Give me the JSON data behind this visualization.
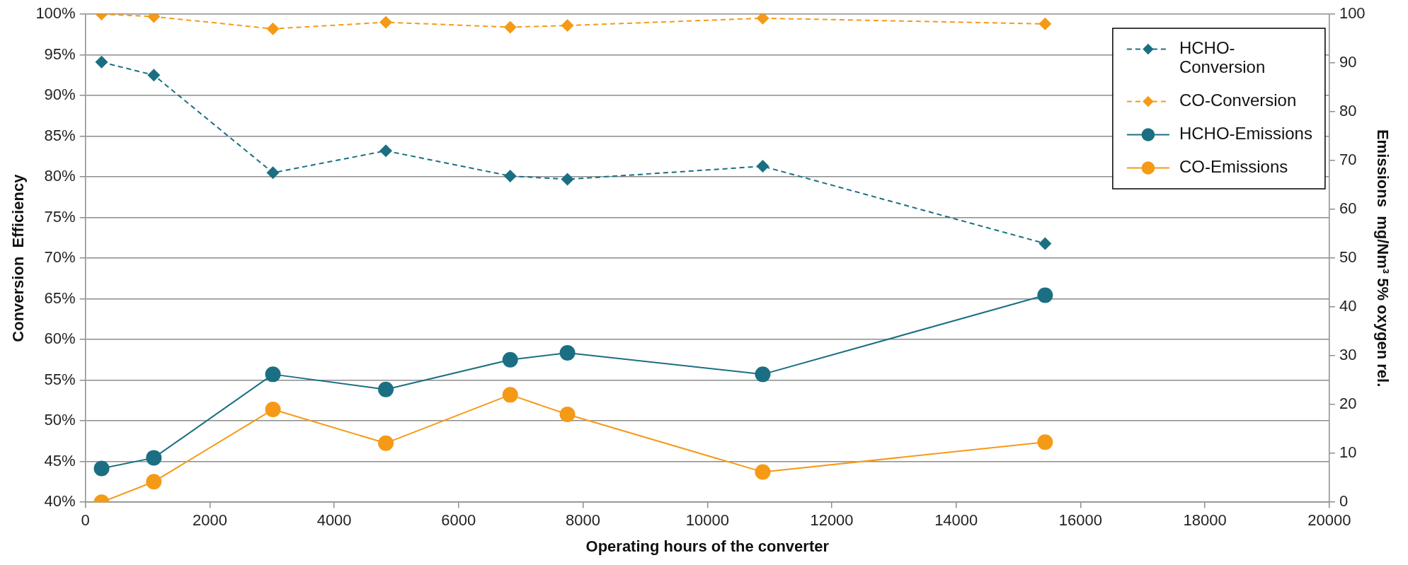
{
  "chart_data": {
    "type": "line",
    "xlabel": "Operating hours of the converter",
    "ylabel": "Conversion  Efficiency",
    "y2label": "Emissions  mg/Nm³ 5% oxygen rel.",
    "xlim": [
      0,
      20000
    ],
    "xticks": [
      0,
      2000,
      4000,
      6000,
      8000,
      10000,
      12000,
      14000,
      16000,
      18000,
      20000
    ],
    "ylim": [
      40,
      100
    ],
    "yticks": [
      {
        "value": 40,
        "label": "40%"
      },
      {
        "value": 45,
        "label": "45%"
      },
      {
        "value": 50,
        "label": "50%"
      },
      {
        "value": 55,
        "label": "55%"
      },
      {
        "value": 60,
        "label": "60%"
      },
      {
        "value": 65,
        "label": "65%"
      },
      {
        "value": 70,
        "label": "70%"
      },
      {
        "value": 75,
        "label": "75%"
      },
      {
        "value": 80,
        "label": "80%"
      },
      {
        "value": 85,
        "label": "85%"
      },
      {
        "value": 90,
        "label": "90%"
      },
      {
        "value": 95,
        "label": "95%"
      },
      {
        "value": 100,
        "label": "100%"
      }
    ],
    "y2lim": [
      0,
      100
    ],
    "y2ticks": [
      0,
      10,
      20,
      30,
      40,
      50,
      60,
      70,
      80,
      90,
      100
    ],
    "x": [
      260,
      1100,
      3015,
      4830,
      6830,
      7750,
      10890,
      15430
    ],
    "grid": "y",
    "legend": "top right",
    "series": [
      {
        "name": "HCHO-Conversion",
        "color": "#1b6f83",
        "marker": "diamond",
        "line_style": "dashed",
        "values": [
          94.1,
          92.5,
          80.5,
          83.2,
          80.1,
          79.7,
          81.3,
          71.8
        ]
      },
      {
        "name": "CO-Conversion",
        "color": "#f59a16",
        "marker": "diamond",
        "line_style": "dashed",
        "values": [
          100,
          99.7,
          98.2,
          99.0,
          98.4,
          98.6,
          99.5,
          98.8
        ]
      },
      {
        "name": "HCHO-Emissions",
        "color": "#1b6f83",
        "marker": "circle",
        "line_style": "solid",
        "axis": "y2",
        "values": [
          6.9,
          9.1,
          26.2,
          23.1,
          29.2,
          30.6,
          26.2,
          42.4
        ]
      },
      {
        "name": "CO-Emissions",
        "color": "#f59a16",
        "marker": "circle",
        "line_style": "solid",
        "axis": "y2",
        "values": [
          0,
          4.2,
          19.0,
          12.1,
          22.0,
          18.0,
          6.2,
          12.3
        ]
      }
    ]
  }
}
